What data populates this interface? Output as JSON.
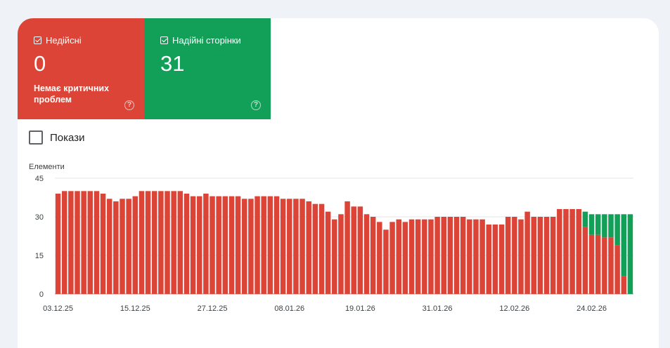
{
  "tiles": {
    "invalid": {
      "label": "Недійсні",
      "value": "0",
      "subtitle": "Немає критичних проблем",
      "color": "#db4437"
    },
    "valid": {
      "label": "Надійні сторінки",
      "value": "31",
      "color": "#12a058"
    }
  },
  "impressions_toggle": {
    "label": "Покази",
    "checked": false
  },
  "chart_data": {
    "type": "bar",
    "stacked": true,
    "ylabel": "Елементи",
    "ylim": [
      0,
      45
    ],
    "yticks": [
      0,
      15,
      30,
      45
    ],
    "xtick_labels": [
      "03.12.25",
      "15.12.25",
      "27.12.25",
      "08.01.26",
      "19.01.26",
      "31.01.26",
      "12.02.26",
      "24.02.26"
    ],
    "xtick_positions": [
      0,
      12,
      24,
      36,
      47,
      59,
      71,
      83
    ],
    "grid": true,
    "series": [
      {
        "color": "#db4437",
        "values": [
          39,
          40,
          40,
          40,
          40,
          40,
          40,
          39,
          37,
          36,
          37,
          37,
          38,
          40,
          40,
          40,
          40,
          40,
          40,
          40,
          39,
          38,
          38,
          39,
          38,
          38,
          38,
          38,
          38,
          37,
          37,
          38,
          38,
          38,
          38,
          37,
          37,
          37,
          37,
          36,
          35,
          35,
          32,
          29,
          31,
          36,
          34,
          34,
          31,
          30,
          28,
          25,
          28,
          29,
          28,
          29,
          29,
          29,
          29,
          30,
          30,
          30,
          30,
          30,
          29,
          29,
          29,
          27,
          27,
          27,
          30,
          30,
          29,
          32,
          30,
          30,
          30,
          30,
          33,
          33,
          33,
          33,
          26,
          23,
          23,
          22,
          22,
          19,
          7,
          0
        ]
      },
      {
        "color": "#12a058",
        "values": [
          0,
          0,
          0,
          0,
          0,
          0,
          0,
          0,
          0,
          0,
          0,
          0,
          0,
          0,
          0,
          0,
          0,
          0,
          0,
          0,
          0,
          0,
          0,
          0,
          0,
          0,
          0,
          0,
          0,
          0,
          0,
          0,
          0,
          0,
          0,
          0,
          0,
          0,
          0,
          0,
          0,
          0,
          0,
          0,
          0,
          0,
          0,
          0,
          0,
          0,
          0,
          0,
          0,
          0,
          0,
          0,
          0,
          0,
          0,
          0,
          0,
          0,
          0,
          0,
          0,
          0,
          0,
          0,
          0,
          0,
          0,
          0,
          0,
          0,
          0,
          0,
          0,
          0,
          0,
          0,
          0,
          0,
          6,
          8,
          8,
          9,
          9,
          12,
          24,
          31
        ]
      }
    ]
  }
}
